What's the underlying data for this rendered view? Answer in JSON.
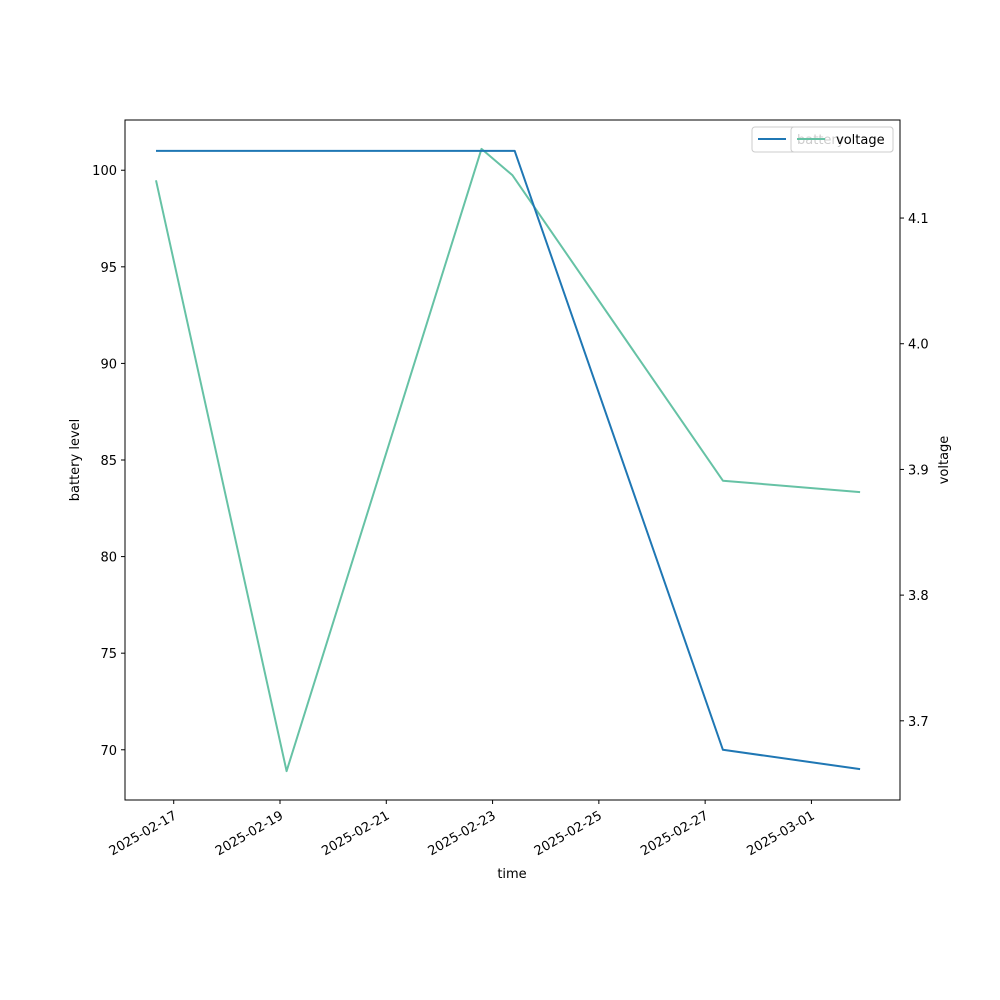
{
  "chart_data": {
    "type": "line",
    "xlabel": "time",
    "x_ticks": [
      "2025-02-17",
      "2025-02-19",
      "2025-02-21",
      "2025-02-23",
      "2025-02-25",
      "2025-02-27",
      "2025-03-01"
    ],
    "x_range": [
      "2025-02-16T02:00",
      "2025-03-02T16:00"
    ],
    "left_axis": {
      "label": "battery level",
      "ylim": [
        67.4,
        102.6
      ],
      "ticks": [
        70,
        75,
        80,
        85,
        90,
        95,
        100
      ]
    },
    "right_axis": {
      "label": "voltage",
      "ylim": [
        3.637,
        4.178
      ],
      "ticks": [
        3.7,
        3.8,
        3.9,
        4.0,
        4.1
      ],
      "tick_labels": [
        "3.7",
        "3.8",
        "3.9",
        "4.0",
        "4.1"
      ]
    },
    "series": [
      {
        "name": "battery",
        "axis": "left",
        "color": "#1f77b4",
        "points": [
          {
            "x": "2025-02-16T16:00",
            "y": 101
          },
          {
            "x": "2025-02-23T10:00",
            "y": 101
          },
          {
            "x": "2025-02-27T08:00",
            "y": 70
          },
          {
            "x": "2025-03-01T22:00",
            "y": 69
          }
        ]
      },
      {
        "name": "voltage",
        "axis": "right",
        "color": "#66c2a5",
        "points": [
          {
            "x": "2025-02-16T16:00",
            "y": 4.13
          },
          {
            "x": "2025-02-19T03:00",
            "y": 3.66
          },
          {
            "x": "2025-02-22T19:00",
            "y": 4.155
          },
          {
            "x": "2025-02-23T09:00",
            "y": 4.134
          },
          {
            "x": "2025-02-27T08:00",
            "y": 3.891
          },
          {
            "x": "2025-03-01T22:00",
            "y": 3.882
          }
        ]
      }
    ],
    "legends": [
      {
        "placement": "upper-right",
        "entries": [
          "battery"
        ]
      },
      {
        "placement": "upper-right",
        "entries": [
          "voltage"
        ]
      }
    ]
  }
}
